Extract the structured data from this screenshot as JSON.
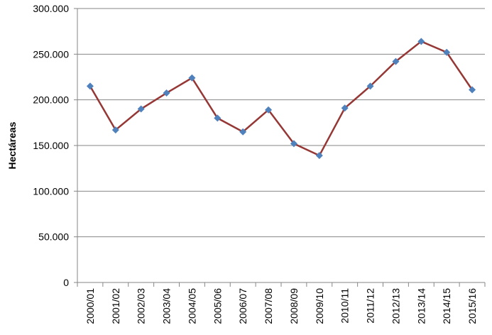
{
  "chart_data": {
    "type": "line",
    "y_label": "Hectáreas",
    "categories": [
      "2000/01",
      "2001/02",
      "2002/03",
      "2003/04",
      "2004/05",
      "2005/06",
      "2006/07",
      "2007/08",
      "2008/09",
      "2009/10",
      "2010/11",
      "2011/12",
      "2012/13",
      "2013/14",
      "2014/15",
      "2015/16"
    ],
    "series": [
      {
        "color": "#953735",
        "marker_color": "#4f81bd",
        "values": [
          215000,
          167000,
          190000,
          207500,
          224000,
          180000,
          165000,
          189000,
          152000,
          139000,
          191000,
          215000,
          242000,
          264000,
          252000,
          211000
        ]
      }
    ],
    "ylim": [
      0,
      300000
    ],
    "yticks": [
      {
        "value": 0,
        "label": "0"
      },
      {
        "value": 50000,
        "label": "50.000"
      },
      {
        "value": 100000,
        "label": "100.000"
      },
      {
        "value": 150000,
        "label": "150.000"
      },
      {
        "value": 200000,
        "label": "200.000"
      },
      {
        "value": 250000,
        "label": "250.000"
      },
      {
        "value": 300000,
        "label": "300.000"
      }
    ],
    "grid": true
  }
}
